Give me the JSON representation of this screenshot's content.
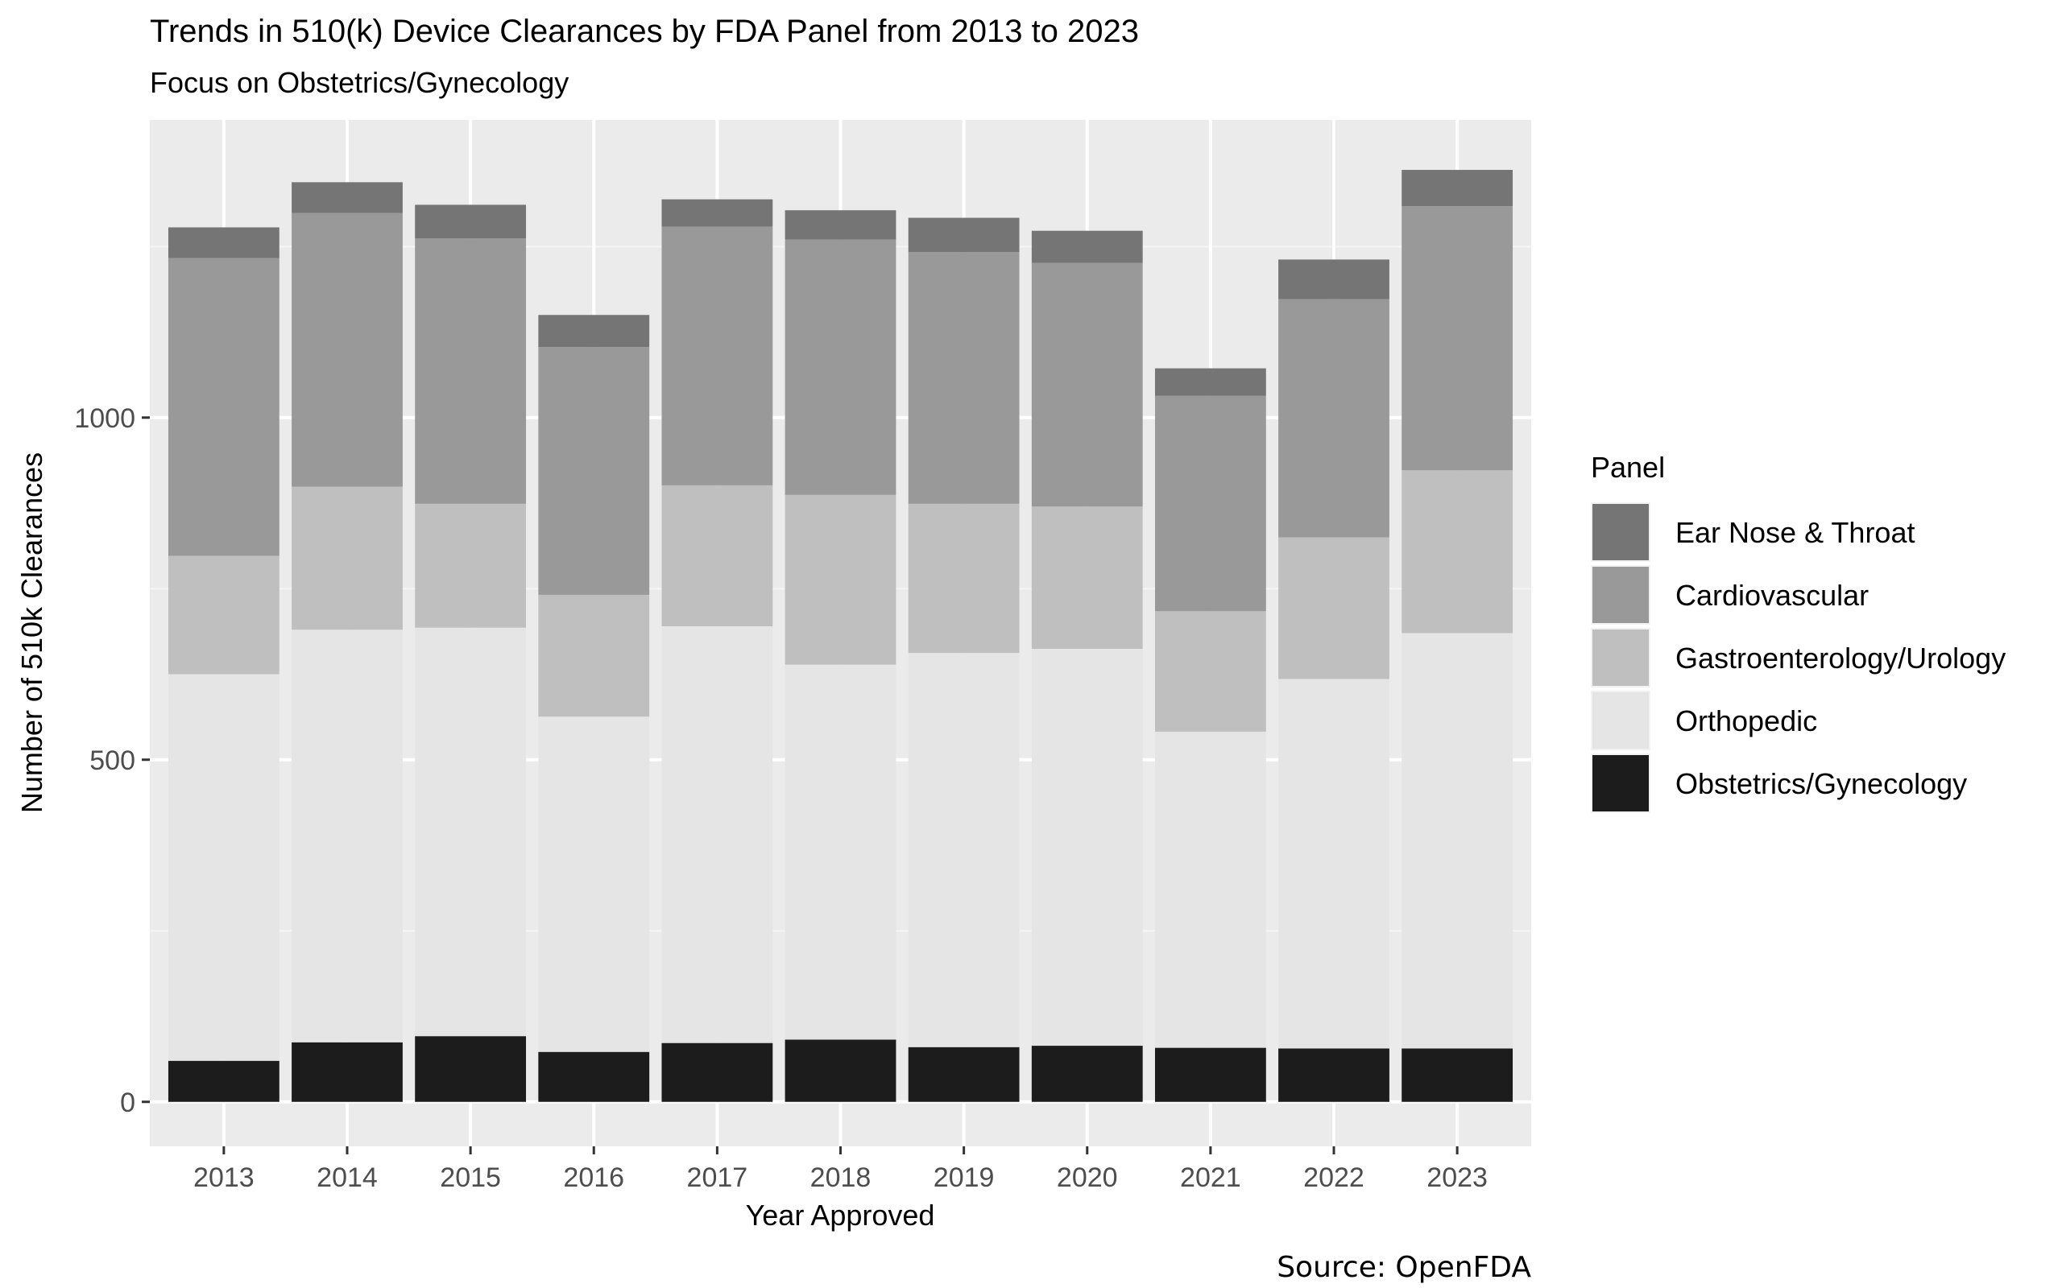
{
  "chart_data": {
    "type": "bar",
    "stacked": true,
    "title": "Trends in 510(k) Device Clearances by FDA Panel from 2013 to 2023",
    "subtitle": "Focus on Obstetrics/Gynecology",
    "xlabel": "Year Approved",
    "ylabel": "Number of 510k Clearances",
    "caption": "Source: OpenFDA",
    "ylim": [
      -65,
      1435
    ],
    "yticks": [
      0,
      500,
      1000
    ],
    "grid": true,
    "legend": {
      "title": "Panel",
      "placement": "right",
      "order": [
        "Ear Nose & Throat",
        "Cardiovascular",
        "Gastroenterology/Urology",
        "Orthopedic",
        "Obstetrics/Gynecology"
      ]
    },
    "categories": [
      "2013",
      "2014",
      "2015",
      "2016",
      "2017",
      "2018",
      "2019",
      "2020",
      "2021",
      "2022",
      "2023"
    ],
    "series": [
      {
        "name": "Obstetrics/Gynecology",
        "color": "#1c1c1c",
        "values": [
          60,
          87,
          96,
          73,
          86,
          91,
          80,
          82,
          79,
          78,
          78
        ]
      },
      {
        "name": "Orthopedic",
        "color": "#e5e5e5",
        "values": [
          565,
          603,
          597,
          490,
          609,
          548,
          576,
          580,
          462,
          540,
          607
        ]
      },
      {
        "name": "Gastroenterology/Urology",
        "color": "#bfbfbf",
        "values": [
          173,
          209,
          181,
          178,
          206,
          248,
          218,
          208,
          176,
          207,
          238
        ]
      },
      {
        "name": "Cardiovascular",
        "color": "#999999",
        "values": [
          435,
          400,
          388,
          362,
          378,
          373,
          368,
          356,
          315,
          348,
          386
        ]
      },
      {
        "name": "Ear Nose & Throat",
        "color": "#757575",
        "values": [
          45,
          45,
          49,
          47,
          40,
          43,
          50,
          47,
          40,
          58,
          53
        ]
      }
    ]
  }
}
